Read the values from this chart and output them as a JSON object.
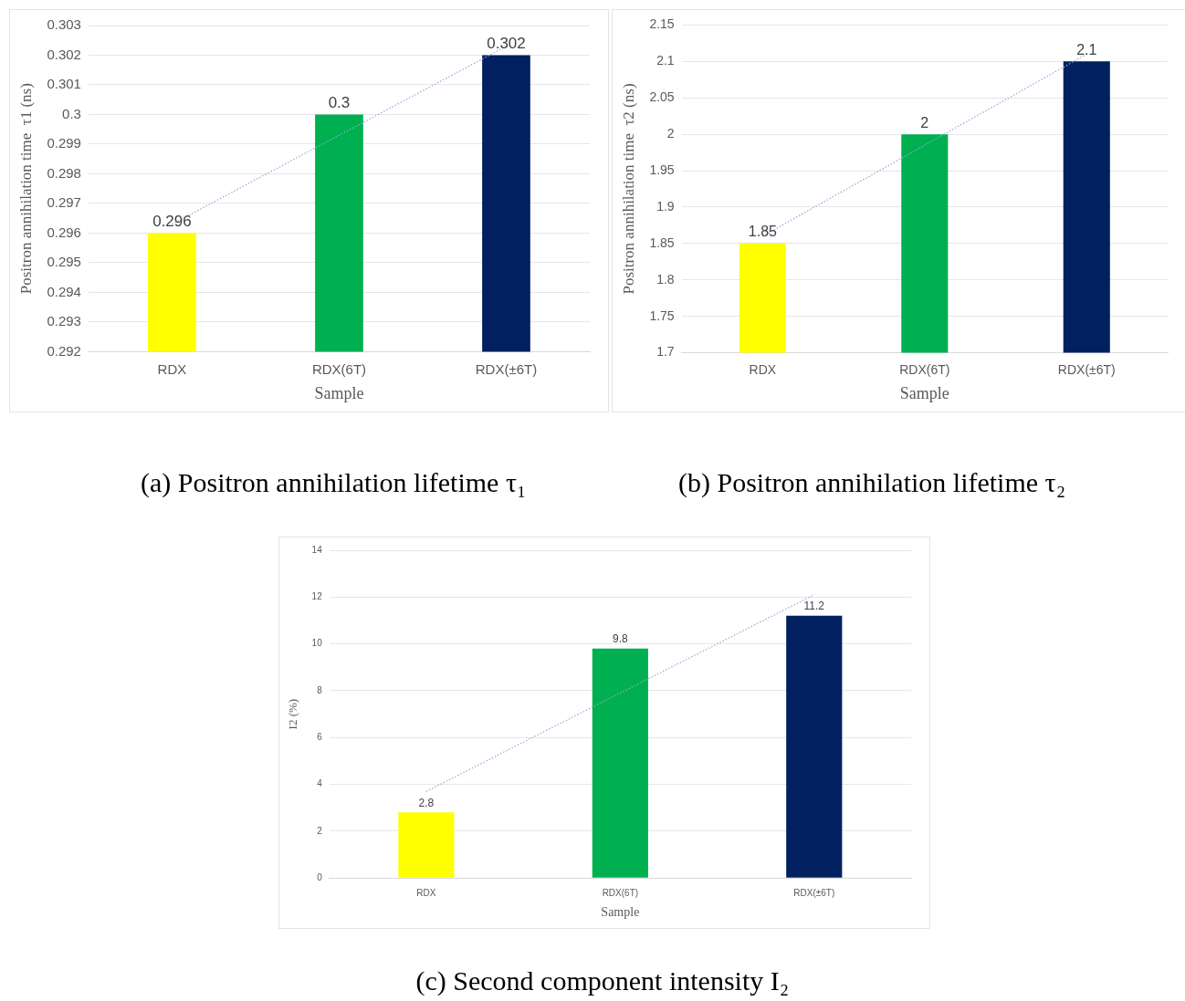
{
  "chart_data": [
    {
      "type": "bar",
      "ylabel": "Positron annihilation time  τ1 (ns)",
      "xlabel": "Sample",
      "categories": [
        "RDX",
        "RDX(6T)",
        "RDX(±6T)"
      ],
      "series": [
        {
          "colors": [
            "#ffff00",
            "#00b050",
            "#002060"
          ],
          "values": [
            0.296,
            0.3,
            0.302
          ],
          "value_labels": [
            "0.296",
            "0.3",
            "0.302"
          ]
        },
        {
          "type": "line",
          "x": [
            "RDX",
            "RDX(±6T)"
          ],
          "values": [
            0.2963,
            0.3023
          ],
          "color": "#8eaadb",
          "line_style": "dotted",
          "marker": "none"
        }
      ],
      "ylim": [
        0.292,
        0.303
      ],
      "yticks": [
        0.292,
        0.293,
        0.294,
        0.295,
        0.296,
        0.297,
        0.298,
        0.299,
        0.3,
        0.301,
        0.302,
        0.303
      ],
      "grid": "y",
      "annotations": [
        "(a) Positron annihilation lifetime  τ₁"
      ]
    },
    {
      "type": "bar",
      "ylabel": "Positron annihilation time  τ2 (ns)",
      "xlabel": "Sample",
      "categories": [
        "RDX",
        "RDX(6T)",
        "RDX(±6T)"
      ],
      "series": [
        {
          "colors": [
            "#ffff00",
            "#00b050",
            "#002060"
          ],
          "values": [
            1.85,
            2,
            2.1
          ],
          "value_labels": [
            "1.85",
            "2",
            "2.1"
          ]
        },
        {
          "type": "line",
          "x": [
            "RDX",
            "RDX(±6T)"
          ],
          "values": [
            1.86,
            2.11
          ],
          "color": "#8eaadb",
          "line_style": "dotted",
          "marker": "none"
        }
      ],
      "ylim": [
        1.7,
        2.15
      ],
      "yticks": [
        1.7,
        1.75,
        1.8,
        1.85,
        1.9,
        1.95,
        2,
        2.05,
        2.1,
        2.15
      ],
      "grid": "y",
      "annotations": [
        "(b) Positron annihilation lifetime  τ₂"
      ]
    },
    {
      "type": "bar",
      "ylabel": "I2 (%)",
      "xlabel": "Sample",
      "categories": [
        "RDX",
        "RDX(6T)",
        "RDX(±6T)"
      ],
      "series": [
        {
          "colors": [
            "#ffff00",
            "#00b050",
            "#002060"
          ],
          "values": [
            2.8,
            9.8,
            11.2
          ],
          "value_labels": [
            "2.8",
            "9.8",
            "11.2"
          ]
        },
        {
          "type": "line",
          "x": [
            "RDX",
            "RDX(±6T)"
          ],
          "values": [
            3.7,
            12.1
          ],
          "color": "#8eaadb",
          "line_style": "dotted",
          "marker": "none"
        }
      ],
      "ylim": [
        0,
        14
      ],
      "yticks": [
        0,
        2,
        4,
        6,
        8,
        10,
        12,
        14
      ],
      "grid": "y",
      "annotations": [
        "(c) Second component intensity I₂"
      ]
    }
  ]
}
